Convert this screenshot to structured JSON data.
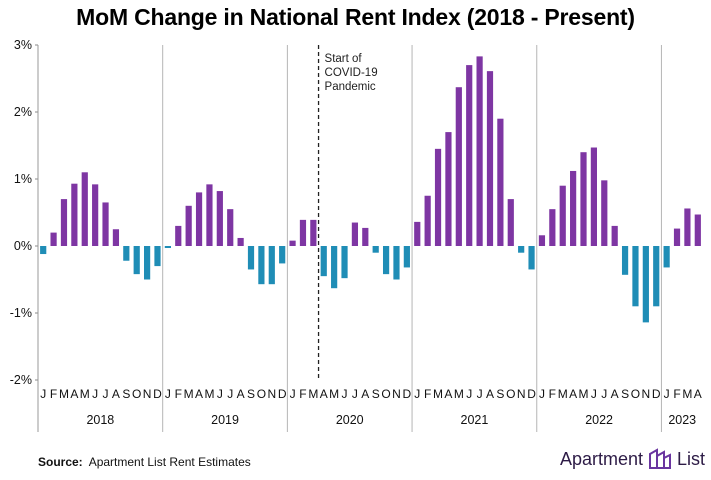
{
  "chart_data": {
    "type": "bar",
    "title": "MoM Change in National Rent Index (2018 - Present)",
    "xlabel": "",
    "ylabel": "",
    "ylim": [
      -2,
      3
    ],
    "yticks": [
      "3%",
      "2%",
      "1%",
      "0%",
      "-1%",
      "-2%"
    ],
    "month_labels": [
      "J",
      "F",
      "M",
      "A",
      "M",
      "J",
      "J",
      "A",
      "S",
      "O",
      "N",
      "D",
      "J",
      "F",
      "M",
      "A",
      "M",
      "J",
      "J",
      "A",
      "S",
      "O",
      "N",
      "D",
      "J",
      "F",
      "M",
      "A",
      "M",
      "J",
      "J",
      "A",
      "S",
      "O",
      "N",
      "D",
      "J",
      "F",
      "M",
      "A",
      "M",
      "J",
      "J",
      "A",
      "S",
      "O",
      "N",
      "D",
      "J",
      "F",
      "M",
      "A",
      "M",
      "J",
      "J",
      "A",
      "S",
      "O",
      "N",
      "D",
      "J",
      "F",
      "M",
      "A"
    ],
    "years": [
      {
        "label": "2018",
        "start": 0,
        "count": 12
      },
      {
        "label": "2019",
        "start": 12,
        "count": 12
      },
      {
        "label": "2020",
        "start": 24,
        "count": 12
      },
      {
        "label": "2021",
        "start": 36,
        "count": 12
      },
      {
        "label": "2022",
        "start": 48,
        "count": 12
      },
      {
        "label": "2023",
        "start": 60,
        "count": 4
      }
    ],
    "values": [
      -0.12,
      0.2,
      0.7,
      0.93,
      1.1,
      0.92,
      0.65,
      0.25,
      -0.22,
      -0.42,
      -0.5,
      -0.3,
      -0.03,
      0.3,
      0.6,
      0.8,
      0.92,
      0.82,
      0.55,
      0.12,
      -0.35,
      -0.57,
      -0.57,
      -0.26,
      0.08,
      0.39,
      0.39,
      -0.45,
      -0.63,
      -0.48,
      0.35,
      0.27,
      -0.1,
      -0.42,
      -0.5,
      -0.32,
      0.36,
      0.75,
      1.45,
      1.7,
      2.37,
      2.7,
      2.83,
      2.61,
      1.9,
      0.7,
      -0.1,
      -0.35,
      0.16,
      0.55,
      0.9,
      1.12,
      1.4,
      1.47,
      0.98,
      0.3,
      -0.43,
      -0.9,
      -1.14,
      -0.9,
      -0.32,
      0.26,
      0.56,
      0.47
    ],
    "colors": {
      "positive": "#7e36a3",
      "negative": "#1f8db6"
    },
    "annotation": {
      "lines": [
        "Start of",
        "COVID-19",
        "Pandemic"
      ],
      "after_index": 26
    }
  },
  "footer": {
    "source_label": "Source:",
    "source_text": "Apartment List Rent Estimates",
    "brand_left": "Apartment",
    "brand_right": "List"
  }
}
